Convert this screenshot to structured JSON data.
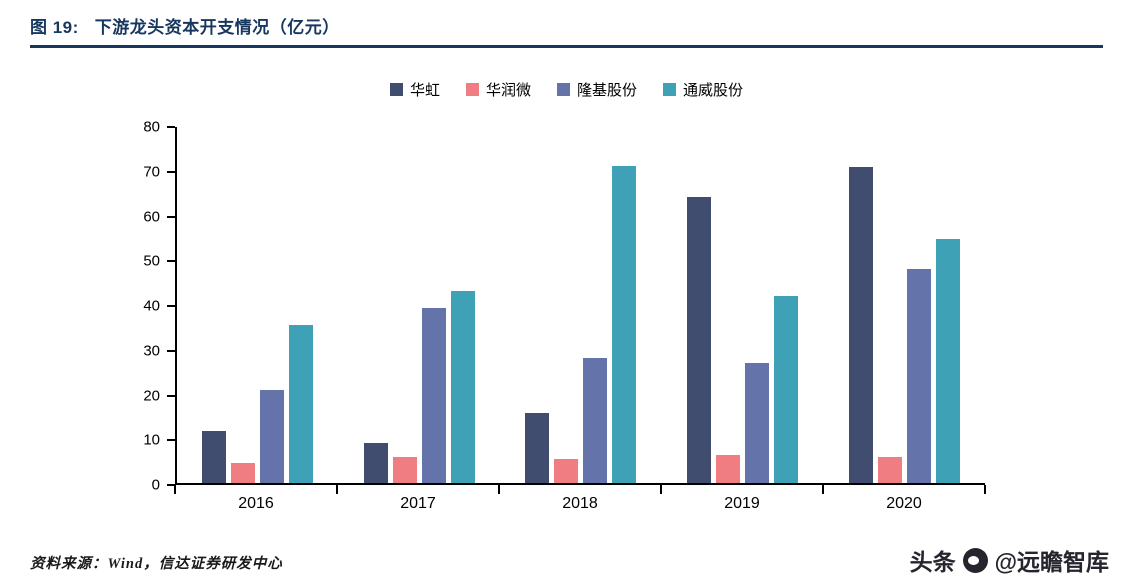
{
  "figure": {
    "title_prefix": "图 19:",
    "title": "下游龙头资本开支情况（亿元）",
    "source": "资料来源：Wind，信达证券研发中心",
    "watermark_left": "头条",
    "watermark_right": "@远瞻智库"
  },
  "colors": {
    "accent": "#17375e",
    "axis": "#000000",
    "series": [
      "#414d6e",
      "#ef7d81",
      "#6474ab",
      "#3ea1b5"
    ]
  },
  "chart_data": {
    "type": "bar",
    "title": "下游龙头资本开支情况（亿元）",
    "categories": [
      "2016",
      "2017",
      "2018",
      "2019",
      "2020"
    ],
    "series": [
      {
        "name": "华虹",
        "color": "#414d6e",
        "values": [
          11.6,
          9.0,
          15.8,
          64.2,
          71.0
        ]
      },
      {
        "name": "华润微",
        "color": "#ef7d81",
        "values": [
          4.4,
          5.8,
          5.5,
          6.2,
          5.8
        ]
      },
      {
        "name": "隆基股份",
        "color": "#6474ab",
        "values": [
          20.9,
          39.4,
          28.2,
          27.0,
          48.2
        ]
      },
      {
        "name": "通威股份",
        "color": "#3ea1b5",
        "values": [
          35.5,
          43.2,
          71.2,
          42.0,
          54.8
        ]
      }
    ],
    "xlabel": "",
    "ylabel": "",
    "ylim": [
      0,
      80
    ],
    "ytick_step": 10,
    "grid": false,
    "legend_position": "top"
  }
}
